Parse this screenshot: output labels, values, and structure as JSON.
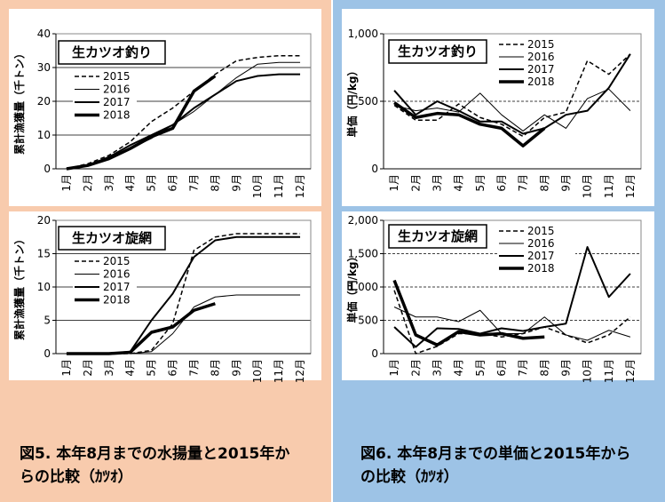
{
  "chart_data": [
    {
      "type": "line",
      "title": "生カツオ釣り",
      "ylabel": "累計漁獲量（千トン）",
      "categories": [
        "1月",
        "2月",
        "3月",
        "4月",
        "5月",
        "6月",
        "7月",
        "8月",
        "9月",
        "10月",
        "11月",
        "12月"
      ],
      "ylim": [
        0,
        40
      ],
      "yticks": [
        0,
        10,
        20,
        30,
        40
      ],
      "grid": true,
      "series": [
        {
          "name": "2015",
          "color": "#000000",
          "values": [
            0,
            1.5,
            4,
            8,
            14,
            18,
            23,
            28,
            32,
            33,
            33.5,
            33.5
          ]
        },
        {
          "name": "2016",
          "color": "#000000",
          "values": [
            0,
            1,
            3,
            6,
            9,
            13,
            17,
            22,
            27,
            31,
            31.5,
            31.5
          ]
        },
        {
          "name": "2017",
          "color": "#000000",
          "values": [
            0,
            1,
            3.5,
            7,
            10,
            13,
            18,
            22,
            26,
            27.5,
            28,
            28
          ]
        },
        {
          "name": "2018",
          "color": "#000000",
          "values": [
            0,
            1,
            3,
            6,
            9.5,
            12,
            23,
            27.5,
            null,
            null,
            null,
            null
          ]
        }
      ]
    },
    {
      "type": "line",
      "title": "生カツオ旋網",
      "ylabel": "累計漁獲量（千トン）",
      "categories": [
        "1月",
        "2月",
        "3月",
        "4月",
        "5月",
        "6月",
        "7月",
        "8月",
        "9月",
        "10月",
        "11月",
        "12月"
      ],
      "ylim": [
        0,
        20
      ],
      "yticks": [
        0,
        5,
        10,
        15,
        20
      ],
      "grid": true,
      "series": [
        {
          "name": "2015",
          "color": "#000000",
          "values": [
            0,
            0,
            0,
            0,
            0.5,
            4.5,
            15.5,
            17.5,
            18,
            18,
            18,
            18
          ]
        },
        {
          "name": "2016",
          "color": "#000000",
          "values": [
            0,
            0,
            0,
            0,
            0.3,
            3,
            7,
            8.5,
            8.8,
            8.8,
            8.8,
            8.8
          ]
        },
        {
          "name": "2017",
          "color": "#000000",
          "values": [
            0,
            0,
            0,
            0.3,
            5,
            9,
            14.5,
            17,
            17.5,
            17.5,
            17.5,
            17.5
          ]
        },
        {
          "name": "2018",
          "color": "#000000",
          "values": [
            0,
            0,
            0,
            0.2,
            3.2,
            4,
            6.5,
            7.5,
            null,
            null,
            null,
            null
          ]
        }
      ]
    },
    {
      "type": "line",
      "title": "生カツオ釣り",
      "ylabel": "単価（円/kg）",
      "categories": [
        "1月",
        "2月",
        "3月",
        "4月",
        "5月",
        "6月",
        "7月",
        "8月",
        "9月",
        "10月",
        "11月",
        "12月"
      ],
      "ylim": [
        0,
        1000
      ],
      "yticks": [
        0,
        500,
        {
          "value": 1000,
          "label": "1,000"
        }
      ],
      "grid": true,
      "series": [
        {
          "name": "2015",
          "color": "#000000",
          "values": [
            470,
            360,
            360,
            480,
            380,
            330,
            240,
            380,
            420,
            800,
            700,
            850
          ]
        },
        {
          "name": "2016",
          "color": "#000000",
          "values": [
            470,
            430,
            450,
            420,
            560,
            400,
            280,
            400,
            300,
            520,
            590,
            430
          ]
        },
        {
          "name": "2017",
          "color": "#000000",
          "values": [
            580,
            400,
            500,
            430,
            350,
            350,
            260,
            300,
            400,
            430,
            600,
            850
          ]
        },
        {
          "name": "2018",
          "color": "#000000",
          "values": [
            490,
            380,
            410,
            400,
            330,
            300,
            170,
            300,
            null,
            null,
            null,
            null
          ]
        }
      ]
    },
    {
      "type": "line",
      "title": "生カツオ旋網",
      "ylabel": "単価（円/kg）",
      "categories": [
        "1月",
        "2月",
        "3月",
        "4月",
        "5月",
        "6月",
        "7月",
        "8月",
        "9月",
        "10月",
        "11月",
        "12月"
      ],
      "ylim": [
        0,
        2000
      ],
      "yticks": [
        0,
        500,
        {
          "value": 1000,
          "label": "1,000"
        },
        {
          "value": 1500,
          "label": "1,500"
        },
        {
          "value": 2000,
          "label": "2,000"
        }
      ],
      "grid": true,
      "series": [
        {
          "name": "2015",
          "color": "#000000",
          "values": [
            950,
            0,
            110,
            300,
            300,
            250,
            300,
            400,
            280,
            160,
            280,
            550
          ]
        },
        {
          "name": "2016",
          "color": "#000000",
          "values": [
            700,
            550,
            550,
            480,
            650,
            300,
            300,
            550,
            280,
            200,
            350,
            250
          ]
        },
        {
          "name": "2017",
          "color": "#000000",
          "values": [
            400,
            100,
            380,
            370,
            300,
            380,
            340,
            400,
            450,
            1600,
            850,
            1200
          ]
        },
        {
          "name": "2018",
          "color": "#000000",
          "values": [
            1100,
            280,
            130,
            330,
            280,
            300,
            230,
            250,
            null,
            null,
            null,
            null
          ]
        }
      ]
    }
  ],
  "captions": [
    "図5. 本年8月までの水揚量と2015年からの比較（ｶﾂｵ）",
    "図6. 本年8月までの単価と2015年からの比較（ｶﾂｵ）"
  ]
}
